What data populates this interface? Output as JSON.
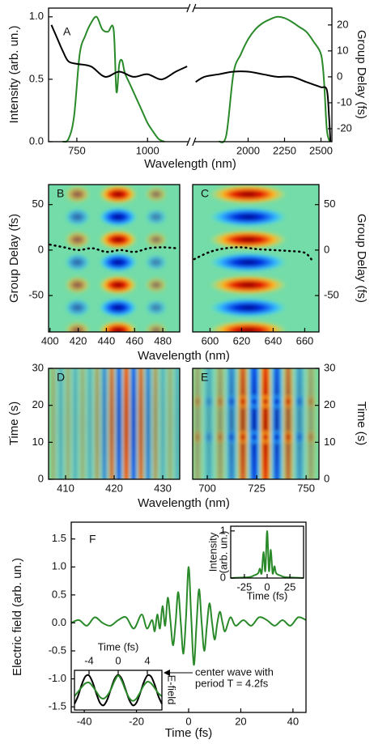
{
  "chart_data": [
    {
      "type": "line",
      "label": "A",
      "xlabel": "Wavelength (nm)",
      "ylabel": "Intensity (arb. un.)",
      "y2label": "Group Delay (fs)",
      "xlim": [
        650,
        2575
      ],
      "axis_break": [
        1145,
        1630
      ],
      "xticks": [
        750,
        1000,
        2000,
        2250,
        2500
      ],
      "ylim": [
        0,
        1.07
      ],
      "yticks": [
        {
          "value": 0,
          "label": "0.0"
        },
        {
          "value": 0.5,
          "label": "0.5"
        },
        {
          "value": 1,
          "label": "1.0"
        }
      ],
      "y2lim": [
        -25,
        26.5
      ],
      "y2ticks": [
        -20,
        -10,
        0,
        10,
        20
      ],
      "series": [
        {
          "color": "#2a8a2a",
          "x": [
            700,
            720,
            740,
            760,
            780,
            800,
            820,
            840,
            860,
            880,
            890,
            900,
            910,
            920,
            940,
            960,
            980,
            1000,
            1020,
            1040,
            1060,
            1400,
            1800,
            1850,
            1900,
            1950,
            2000,
            2050,
            2100,
            2150,
            2200,
            2250,
            2300,
            2350,
            2400,
            2450,
            2500,
            2520,
            2540,
            2560
          ],
          "values": [
            0,
            0.02,
            0.2,
            0.7,
            0.85,
            0.95,
            1.0,
            0.9,
            0.88,
            0.9,
            0.4,
            0.62,
            0.65,
            0.55,
            0.45,
            0.35,
            0.25,
            0.15,
            0.08,
            0.02,
            0,
            null,
            0,
            0.05,
            0.55,
            0.7,
            0.82,
            0.9,
            0.95,
            0.98,
            1.0,
            0.99,
            0.96,
            0.92,
            0.88,
            0.8,
            0.7,
            0.5,
            0.1,
            0
          ]
        },
        {
          "color": "#000000",
          "axis": "y2",
          "x": [
            660,
            680,
            700,
            720,
            750,
            800,
            850,
            900,
            950,
            1000,
            1050,
            1100,
            1140,
            1400,
            1640,
            1700,
            1800,
            1900,
            2000,
            2100,
            2200,
            2300,
            2400,
            2450,
            2500,
            2540,
            2555,
            2565
          ],
          "values": [
            20,
            15,
            10,
            6,
            5,
            4,
            0,
            2,
            0,
            1,
            -1,
            2,
            4,
            null,
            -2,
            0,
            1,
            2,
            2,
            1,
            0,
            0,
            -2,
            -3,
            -4,
            -5,
            -15,
            -25
          ]
        }
      ]
    },
    {
      "type": "heatmap",
      "label": "B",
      "xlabel": "Wavelength (nm)",
      "ylabel": "Group Delay (fs)",
      "xlim": [
        399,
        492
      ],
      "xticks": [
        400,
        420,
        440,
        460,
        480
      ],
      "ylim": [
        -90,
        72
      ],
      "yticks": [
        -50,
        0,
        50
      ],
      "series": [
        {
          "color": "#000000",
          "dash": true,
          "x": [
            400,
            410,
            420,
            430,
            440,
            450,
            460,
            470,
            480,
            490
          ],
          "values": [
            6,
            3,
            0,
            2,
            -2,
            0,
            -2,
            2,
            3,
            2
          ]
        }
      ]
    },
    {
      "type": "heatmap",
      "label": "C",
      "ylabel": "Group Delay (fs)",
      "ylabel_side": "right",
      "xlim": [
        589,
        669
      ],
      "xticks": [
        600,
        620,
        640,
        660
      ],
      "ylim": [
        -90,
        72
      ],
      "yticks": [
        -50,
        0,
        50
      ],
      "series": [
        {
          "color": "#000000",
          "dash": true,
          "x": [
            590,
            600,
            610,
            620,
            630,
            640,
            650,
            660,
            665
          ],
          "values": [
            -10,
            -2,
            2,
            3,
            1,
            0,
            -1,
            -3,
            -12
          ]
        }
      ]
    },
    {
      "type": "heatmap",
      "label": "D",
      "xlabel": "Wavelength (nm)",
      "ylabel": "Time (s)",
      "xlim": [
        406.5,
        433.5
      ],
      "xticks": [
        410,
        420,
        430
      ],
      "ylim": [
        0,
        30
      ],
      "yticks": [
        0,
        10,
        20,
        30
      ]
    },
    {
      "type": "heatmap",
      "label": "E",
      "ylabel": "Time (s)",
      "ylabel_side": "right",
      "xlim": [
        692.6,
        756.5
      ],
      "xticks": [
        700,
        725,
        750
      ],
      "ylim": [
        0,
        30
      ],
      "yticks": [
        0,
        10,
        20,
        30
      ]
    },
    {
      "type": "line",
      "label": "F",
      "xlabel": "Time (fs)",
      "ylabel": "Electric field (arb. un.)",
      "xlim": [
        -45,
        45
      ],
      "xticks": [
        -40,
        -20,
        0,
        20,
        40
      ],
      "ylim": [
        -1.6,
        1.8
      ],
      "yticks": [
        {
          "value": -1.5,
          "label": "-1.5"
        },
        {
          "value": -1,
          "label": "-1.0"
        },
        {
          "value": -0.5,
          "label": "-0.5"
        },
        {
          "value": 0,
          "label": "0.0"
        },
        {
          "value": 0.5,
          "label": "0.5"
        },
        {
          "value": 1,
          "label": "1.0"
        },
        {
          "value": 1.5,
          "label": "1.5"
        }
      ],
      "series": [
        {
          "color": "#2a8a2a",
          "x": [
            -45,
            -42,
            -39,
            -36,
            -33,
            -30,
            -27,
            -24,
            -21,
            -18,
            -16,
            -14,
            -13,
            -12,
            -11,
            -10,
            -9,
            -8,
            -7,
            -6,
            -5,
            -4,
            -3,
            -2,
            -1,
            0,
            1,
            2,
            3,
            4,
            5,
            6,
            7,
            8,
            9,
            10,
            11,
            12,
            13,
            14,
            16,
            18,
            21,
            24,
            27,
            30,
            33,
            36,
            39,
            42,
            45
          ],
          "values": [
            0,
            0.05,
            -0.05,
            0.1,
            0,
            -0.05,
            0.05,
            0.1,
            -0.1,
            0.15,
            -0.1,
            0.05,
            -0.15,
            0.15,
            -0.1,
            0.3,
            -0.05,
            0.45,
            0.05,
            -0.4,
            0,
            0.55,
            0,
            -0.55,
            0.1,
            1,
            0.1,
            -0.75,
            -0.05,
            0.6,
            0,
            -0.5,
            -0.05,
            0.35,
            0,
            -0.3,
            0,
            0.2,
            0,
            -0.15,
            0.1,
            -0.05,
            0.05,
            -0.05,
            0.1,
            0.05,
            -0.05,
            0.05,
            -0.05,
            0.1,
            0.05
          ]
        }
      ]
    },
    {
      "type": "line",
      "xlabel": "Time (fs)",
      "ylabel": [
        "Intensity",
        "(arb. un.)"
      ],
      "xlim": [
        -40,
        40
      ],
      "xticks": [
        -25,
        0,
        25
      ],
      "ylim": [
        0,
        1.1
      ],
      "yticks": [
        0,
        1
      ],
      "series": [
        {
          "color": "#2a8a2a",
          "x": [
            -40,
            -20,
            -15,
            -10,
            -8,
            -6,
            -4,
            -2,
            0,
            2,
            4,
            6,
            8,
            10,
            15,
            20,
            40
          ],
          "values": [
            0,
            0.02,
            0.05,
            0.1,
            0.2,
            0.1,
            0.55,
            0.15,
            1.0,
            0.15,
            0.6,
            0.1,
            0.25,
            0.1,
            0.05,
            0.02,
            0
          ]
        }
      ]
    },
    {
      "type": "line",
      "xlabel": "Time (fs)",
      "ylabel": "E-field",
      "xaxis_side": "top",
      "xlim": [
        -6,
        6
      ],
      "xticks": [
        -4,
        0,
        4
      ],
      "ylim": [
        -1.3,
        1.3
      ],
      "annotation": [
        "center wave with",
        "period T = 4.2fs"
      ],
      "series": [
        {
          "color": "#000000",
          "x": [
            -6,
            -5.5,
            -5,
            -4.5,
            -4,
            -3.5,
            -3,
            -2.5,
            -2,
            -1.5,
            -1,
            -0.5,
            0,
            0.5,
            1,
            1.5,
            2,
            2.5,
            3,
            3.5,
            4,
            4.5,
            5,
            5.5,
            6
          ],
          "values": [
            -0.9,
            -0.37,
            0.37,
            0.9,
            0.96,
            0.5,
            -0.22,
            -0.83,
            -0.99,
            -0.62,
            0.07,
            0.73,
            1,
            0.73,
            0.07,
            -0.62,
            -0.99,
            -0.83,
            -0.22,
            0.5,
            0.96,
            0.9,
            0.37,
            -0.37,
            -0.9
          ]
        },
        {
          "color": "#2a8a2a",
          "x": [
            -6,
            -5.5,
            -5,
            -4.5,
            -4,
            -3.5,
            -3,
            -2.5,
            -2,
            -1.5,
            -1,
            -0.5,
            0,
            0.5,
            1,
            1.5,
            2,
            2.5,
            3,
            3.5,
            4,
            4.5,
            5,
            5.5,
            6
          ],
          "values": [
            -0.4,
            -0.1,
            0.2,
            0.45,
            0.5,
            0.25,
            -0.1,
            -0.45,
            -0.55,
            -0.35,
            0.05,
            0.6,
            0.95,
            0.6,
            0,
            -0.5,
            -0.7,
            -0.55,
            -0.15,
            0.3,
            0.55,
            0.45,
            0.15,
            -0.2,
            -0.4
          ]
        }
      ]
    }
  ]
}
